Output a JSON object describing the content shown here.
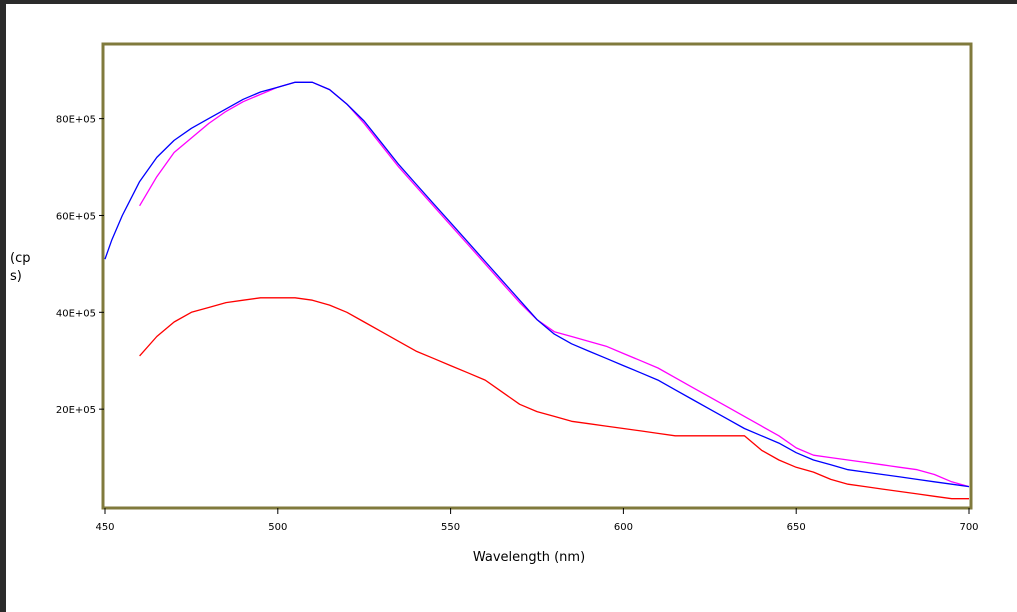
{
  "chart_data": {
    "type": "line",
    "title": "",
    "xlabel": "Wavelength (nm)",
    "ylabel_lines": [
      "(cp",
      "s)"
    ],
    "xlim": [
      450,
      700
    ],
    "ylim": [
      0,
      9.5
    ],
    "grid": false,
    "x_ticks": [
      {
        "value": 450,
        "label": "450"
      },
      {
        "value": 500,
        "label": "500"
      },
      {
        "value": 550,
        "label": "550"
      },
      {
        "value": 600,
        "label": "600"
      },
      {
        "value": 650,
        "label": "650"
      },
      {
        "value": 700,
        "label": "700"
      }
    ],
    "y_ticks": [
      {
        "value": 2,
        "label": "20E+05"
      },
      {
        "value": 4,
        "label": "40E+05"
      },
      {
        "value": 6,
        "label": "60E+05"
      },
      {
        "value": 8,
        "label": "80E+05"
      }
    ],
    "series": [
      {
        "color": "#ff00ff",
        "points": [
          [
            460,
            6.2
          ],
          [
            465,
            6.8
          ],
          [
            470,
            7.3
          ],
          [
            475,
            7.6
          ],
          [
            480,
            7.9
          ],
          [
            485,
            8.15
          ],
          [
            490,
            8.35
          ],
          [
            495,
            8.5
          ],
          [
            500,
            8.65
          ],
          [
            505,
            8.75
          ],
          [
            510,
            8.75
          ],
          [
            515,
            8.6
          ],
          [
            520,
            8.3
          ],
          [
            525,
            7.9
          ],
          [
            530,
            7.45
          ],
          [
            535,
            7.0
          ],
          [
            540,
            6.6
          ],
          [
            545,
            6.2
          ],
          [
            550,
            5.8
          ],
          [
            555,
            5.4
          ],
          [
            560,
            5.0
          ],
          [
            565,
            4.6
          ],
          [
            570,
            4.2
          ],
          [
            575,
            3.85
          ],
          [
            580,
            3.6
          ],
          [
            585,
            3.5
          ],
          [
            590,
            3.4
          ],
          [
            595,
            3.3
          ],
          [
            600,
            3.15
          ],
          [
            605,
            3.0
          ],
          [
            610,
            2.85
          ],
          [
            615,
            2.65
          ],
          [
            620,
            2.45
          ],
          [
            625,
            2.25
          ],
          [
            630,
            2.05
          ],
          [
            635,
            1.85
          ],
          [
            640,
            1.65
          ],
          [
            645,
            1.45
          ],
          [
            650,
            1.2
          ],
          [
            655,
            1.05
          ],
          [
            660,
            1.0
          ],
          [
            665,
            0.95
          ],
          [
            670,
            0.9
          ],
          [
            675,
            0.85
          ],
          [
            680,
            0.8
          ],
          [
            685,
            0.75
          ],
          [
            690,
            0.65
          ],
          [
            695,
            0.5
          ],
          [
            700,
            0.4
          ]
        ]
      },
      {
        "color": "#0000ff",
        "points": [
          [
            450,
            5.1
          ],
          [
            452,
            5.5
          ],
          [
            455,
            6.0
          ],
          [
            460,
            6.7
          ],
          [
            465,
            7.2
          ],
          [
            470,
            7.55
          ],
          [
            475,
            7.8
          ],
          [
            480,
            8.0
          ],
          [
            485,
            8.2
          ],
          [
            490,
            8.4
          ],
          [
            495,
            8.55
          ],
          [
            500,
            8.65
          ],
          [
            505,
            8.75
          ],
          [
            510,
            8.75
          ],
          [
            515,
            8.6
          ],
          [
            520,
            8.3
          ],
          [
            525,
            7.95
          ],
          [
            530,
            7.5
          ],
          [
            535,
            7.05
          ],
          [
            540,
            6.65
          ],
          [
            545,
            6.25
          ],
          [
            550,
            5.85
          ],
          [
            555,
            5.45
          ],
          [
            560,
            5.05
          ],
          [
            565,
            4.65
          ],
          [
            570,
            4.25
          ],
          [
            575,
            3.85
          ],
          [
            580,
            3.55
          ],
          [
            585,
            3.35
          ],
          [
            590,
            3.2
          ],
          [
            595,
            3.05
          ],
          [
            600,
            2.9
          ],
          [
            605,
            2.75
          ],
          [
            610,
            2.6
          ],
          [
            615,
            2.4
          ],
          [
            620,
            2.2
          ],
          [
            625,
            2.0
          ],
          [
            630,
            1.8
          ],
          [
            635,
            1.6
          ],
          [
            640,
            1.45
          ],
          [
            645,
            1.3
          ],
          [
            650,
            1.1
          ],
          [
            655,
            0.95
          ],
          [
            660,
            0.85
          ],
          [
            665,
            0.75
          ],
          [
            670,
            0.7
          ],
          [
            675,
            0.65
          ],
          [
            680,
            0.6
          ],
          [
            685,
            0.55
          ],
          [
            690,
            0.5
          ],
          [
            695,
            0.45
          ],
          [
            700,
            0.4
          ]
        ]
      },
      {
        "color": "#ff0000",
        "points": [
          [
            460,
            3.1
          ],
          [
            465,
            3.5
          ],
          [
            470,
            3.8
          ],
          [
            475,
            4.0
          ],
          [
            480,
            4.1
          ],
          [
            485,
            4.2
          ],
          [
            490,
            4.25
          ],
          [
            495,
            4.3
          ],
          [
            500,
            4.3
          ],
          [
            505,
            4.3
          ],
          [
            510,
            4.25
          ],
          [
            515,
            4.15
          ],
          [
            520,
            4.0
          ],
          [
            525,
            3.8
          ],
          [
            530,
            3.6
          ],
          [
            535,
            3.4
          ],
          [
            540,
            3.2
          ],
          [
            545,
            3.05
          ],
          [
            550,
            2.9
          ],
          [
            555,
            2.75
          ],
          [
            560,
            2.6
          ],
          [
            565,
            2.35
          ],
          [
            570,
            2.1
          ],
          [
            575,
            1.95
          ],
          [
            580,
            1.85
          ],
          [
            585,
            1.75
          ],
          [
            590,
            1.7
          ],
          [
            595,
            1.65
          ],
          [
            600,
            1.6
          ],
          [
            605,
            1.55
          ],
          [
            610,
            1.5
          ],
          [
            615,
            1.45
          ],
          [
            620,
            1.45
          ],
          [
            625,
            1.45
          ],
          [
            630,
            1.45
          ],
          [
            635,
            1.45
          ],
          [
            640,
            1.15
          ],
          [
            645,
            0.95
          ],
          [
            650,
            0.8
          ],
          [
            655,
            0.7
          ],
          [
            660,
            0.55
          ],
          [
            665,
            0.45
          ],
          [
            670,
            0.4
          ],
          [
            675,
            0.35
          ],
          [
            680,
            0.3
          ],
          [
            685,
            0.25
          ],
          [
            690,
            0.2
          ],
          [
            695,
            0.15
          ],
          [
            700,
            0.15
          ]
        ]
      }
    ]
  }
}
